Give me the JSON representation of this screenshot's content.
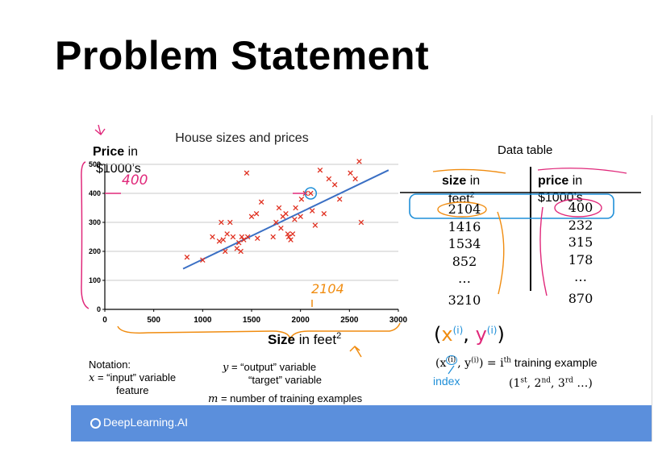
{
  "slide": {
    "title": "Problem Statement"
  },
  "chart_data": {
    "type": "scatter",
    "title": "House sizes and prices",
    "ylabel_bold": "Price",
    "ylabel_rest": " in",
    "ylabel_line2": "$1000’s",
    "xlabel_bold": "Size",
    "xlabel_rest": " in feet",
    "xlabel_sup": "2",
    "xlim": [
      0,
      3000
    ],
    "ylim": [
      0,
      500
    ],
    "x_ticks": [
      "0",
      "500",
      "1000",
      "1500",
      "2000",
      "2500",
      "3000"
    ],
    "y_ticks": [
      "0",
      "100",
      "200",
      "300",
      "400",
      "500"
    ],
    "grid": true,
    "points": [
      [
        840,
        180
      ],
      [
        1000,
        170
      ],
      [
        1100,
        250
      ],
      [
        1170,
        235
      ],
      [
        1190,
        300
      ],
      [
        1210,
        240
      ],
      [
        1230,
        200
      ],
      [
        1250,
        260
      ],
      [
        1280,
        300
      ],
      [
        1310,
        250
      ],
      [
        1350,
        210
      ],
      [
        1370,
        230
      ],
      [
        1390,
        200
      ],
      [
        1400,
        250
      ],
      [
        1420,
        240
      ],
      [
        1450,
        470
      ],
      [
        1460,
        250
      ],
      [
        1500,
        320
      ],
      [
        1550,
        330
      ],
      [
        1560,
        245
      ],
      [
        1600,
        370
      ],
      [
        1720,
        250
      ],
      [
        1750,
        300
      ],
      [
        1780,
        350
      ],
      [
        1800,
        280
      ],
      [
        1820,
        320
      ],
      [
        1850,
        330
      ],
      [
        1870,
        260
      ],
      [
        1880,
        250
      ],
      [
        1900,
        240
      ],
      [
        1920,
        260
      ],
      [
        1940,
        310
      ],
      [
        1950,
        350
      ],
      [
        2000,
        320
      ],
      [
        2010,
        380
      ],
      [
        2050,
        400
      ],
      [
        2104,
        400
      ],
      [
        2120,
        340
      ],
      [
        2150,
        290
      ],
      [
        2200,
        480
      ],
      [
        2240,
        330
      ],
      [
        2290,
        450
      ],
      [
        2350,
        430
      ],
      [
        2400,
        380
      ],
      [
        2510,
        470
      ],
      [
        2560,
        450
      ],
      [
        2600,
        510
      ],
      [
        2620,
        300
      ]
    ],
    "fit_line": [
      [
        800,
        140
      ],
      [
        2900,
        480
      ]
    ],
    "highlight_point": [
      2104,
      400
    ],
    "annotations": {
      "y_value": "400",
      "x_value": "2104"
    },
    "colors": {
      "points": "#e03020",
      "line": "#3a6fc4",
      "highlight": "#1f8fd8"
    }
  },
  "data_table": {
    "title": "Data table",
    "size_header_bold": "size",
    "size_header_rest": " in",
    "size_header_line2": "feet",
    "size_header_sup": "2",
    "price_header_bold": "price",
    "price_header_rest": " in",
    "price_header_line2": "$1000’s",
    "rows": [
      {
        "size": "2104",
        "price": "400"
      },
      {
        "size": "1416",
        "price": "232"
      },
      {
        "size": "1534",
        "price": "315"
      },
      {
        "size": "852",
        "price": "178"
      },
      {
        "size": "…",
        "price": "…"
      },
      {
        "size": "3210",
        "price": "870"
      }
    ]
  },
  "notation": {
    "heading": "Notation:",
    "x_line_var": "x",
    "x_line_text": " = “input” variable",
    "x_line2": "feature",
    "y_line_var": "y",
    "y_line_text": " = “output” variable",
    "y_line2": "“target” variable",
    "m_line_var": "m",
    "m_line_text": " = number of training examples",
    "ith_expr": "(x",
    "ith_sup": "(i)",
    "ith_mid": ", y",
    "ith_sup2": "(i)",
    "ith_close": ")",
    "ith_equals": " = i",
    "ith_th": "th",
    "ith_text": " training example",
    "ordinals_open": "(1",
    "ord1": "st",
    "ord_sep1": ", 2",
    "ord2": "nd",
    "ord_sep2": ", 3",
    "ord3": "rd",
    "ordinals_close": " …)",
    "index_label": "index",
    "handwritten_x": "x",
    "handwritten_y": "y",
    "handwritten_i": "(i)"
  },
  "footer": {
    "logo_text": "DeepLearning.AI",
    "color": "#5b8fdc"
  }
}
